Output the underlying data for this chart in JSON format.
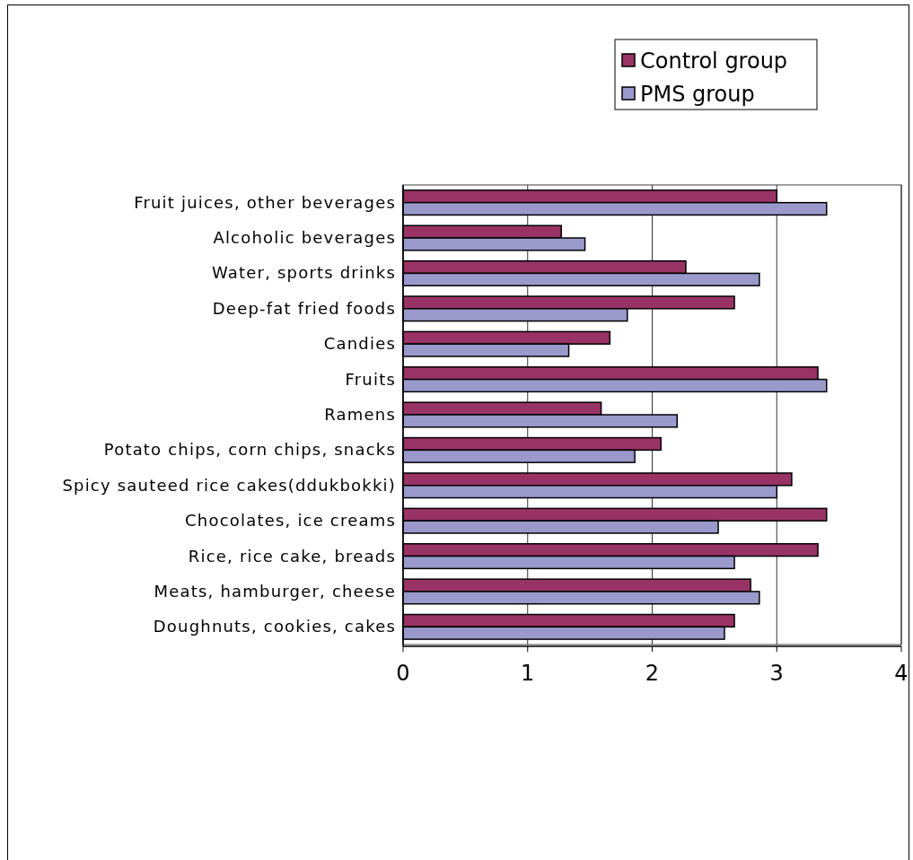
{
  "chart_data": {
    "type": "bar",
    "orientation": "horizontal",
    "categories": [
      "Fruit juices, other beverages",
      "Alcoholic beverages",
      "Water, sports drinks",
      "Deep-fat fried foods",
      "Candies",
      "Fruits",
      "Ramens",
      "Potato chips, corn chips, snacks",
      "Spicy sauteed rice cakes(ddukbokki)",
      "Chocolates, ice creams",
      "Rice, rice cake, breads",
      "Meats, hamburger, cheese",
      "Doughnuts, cookies, cakes"
    ],
    "series": [
      {
        "name": "Control group",
        "color": "#993366",
        "values": [
          3.0,
          1.27,
          2.27,
          2.66,
          1.66,
          3.33,
          1.59,
          2.07,
          3.12,
          3.4,
          3.33,
          2.79,
          2.66
        ]
      },
      {
        "name": "PMS group",
        "color": "#9999cc",
        "values": [
          3.4,
          1.46,
          2.86,
          1.8,
          1.33,
          3.4,
          2.2,
          1.86,
          3.0,
          2.53,
          2.66,
          2.86,
          2.58
        ]
      }
    ],
    "xlim": [
      0,
      4
    ],
    "xticks": [
      0,
      1,
      2,
      3,
      4
    ],
    "grid": "x",
    "legend": "top right"
  }
}
